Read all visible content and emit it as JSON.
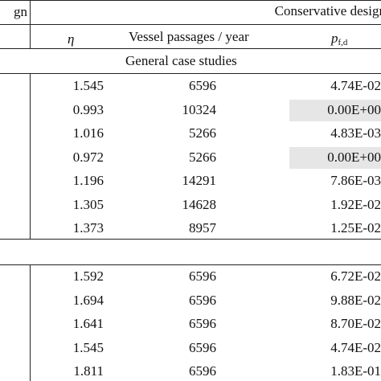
{
  "table": {
    "left_header_fragment": "gn",
    "group_header": "Conservative design",
    "columns": {
      "eta": "η",
      "vessel_passages": "Vessel passages / year",
      "pf_base": "p",
      "pf_sub": "f,d"
    },
    "section_title": "General case studies",
    "group1_rows": [
      {
        "eta": "1.545",
        "vessel_passages": "6596",
        "pf": "4.74E-02",
        "highlight": false
      },
      {
        "eta": "0.993",
        "vessel_passages": "10324",
        "pf": "0.00E+00",
        "highlight": true
      },
      {
        "eta": "1.016",
        "vessel_passages": "5266",
        "pf": "4.83E-03",
        "highlight": false
      },
      {
        "eta": "0.972",
        "vessel_passages": "5266",
        "pf": "0.00E+00",
        "highlight": true
      },
      {
        "eta": "1.196",
        "vessel_passages": "14291",
        "pf": "7.86E-03",
        "highlight": false
      },
      {
        "eta": "1.305",
        "vessel_passages": "14628",
        "pf": "1.92E-02",
        "highlight": false
      },
      {
        "eta": "1.373",
        "vessel_passages": "8957",
        "pf": "1.25E-02",
        "highlight": false
      }
    ],
    "group2_rows": [
      {
        "eta": "1.592",
        "vessel_passages": "6596",
        "pf": "6.72E-02",
        "highlight": false
      },
      {
        "eta": "1.694",
        "vessel_passages": "6596",
        "pf": "9.88E-02",
        "highlight": false
      },
      {
        "eta": "1.641",
        "vessel_passages": "6596",
        "pf": "8.70E-02",
        "highlight": false
      },
      {
        "eta": "1.545",
        "vessel_passages": "6596",
        "pf": "4.74E-02",
        "highlight": false
      },
      {
        "eta": "1.811",
        "vessel_passages": "6596",
        "pf": "1.83E-01",
        "highlight": false
      }
    ],
    "highlight_color": "#e6e6e6"
  }
}
